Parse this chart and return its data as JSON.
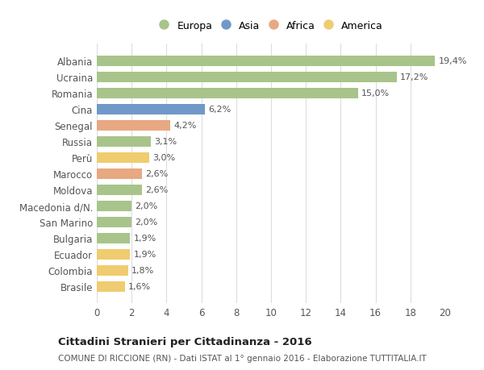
{
  "categories": [
    "Albania",
    "Ucraina",
    "Romania",
    "Cina",
    "Senegal",
    "Russia",
    "Perù",
    "Marocco",
    "Moldova",
    "Macedonia d/N.",
    "San Marino",
    "Bulgaria",
    "Ecuador",
    "Colombia",
    "Brasile"
  ],
  "values": [
    19.4,
    17.2,
    15.0,
    6.2,
    4.2,
    3.1,
    3.0,
    2.6,
    2.6,
    2.0,
    2.0,
    1.9,
    1.9,
    1.8,
    1.6
  ],
  "labels": [
    "19,4%",
    "17,2%",
    "15,0%",
    "6,2%",
    "4,2%",
    "3,1%",
    "3,0%",
    "2,6%",
    "2,6%",
    "2,0%",
    "2,0%",
    "1,9%",
    "1,9%",
    "1,8%",
    "1,6%"
  ],
  "continents": [
    "Europa",
    "Europa",
    "Europa",
    "Asia",
    "Africa",
    "Europa",
    "America",
    "Africa",
    "Europa",
    "Europa",
    "Europa",
    "Europa",
    "America",
    "America",
    "America"
  ],
  "colors": {
    "Europa": "#a8c48a",
    "Asia": "#7098c8",
    "Africa": "#e8a882",
    "America": "#f0cc70"
  },
  "legend_order": [
    "Europa",
    "Asia",
    "Africa",
    "America"
  ],
  "title": "Cittadini Stranieri per Cittadinanza - 2016",
  "subtitle": "COMUNE DI RICCIONE (RN) - Dati ISTAT al 1° gennaio 2016 - Elaborazione TUTTITALIA.IT",
  "xlim": [
    0,
    20
  ],
  "xticks": [
    0,
    2,
    4,
    6,
    8,
    10,
    12,
    14,
    16,
    18,
    20
  ],
  "background_color": "#ffffff",
  "grid_color": "#dddddd",
  "bar_height": 0.65
}
